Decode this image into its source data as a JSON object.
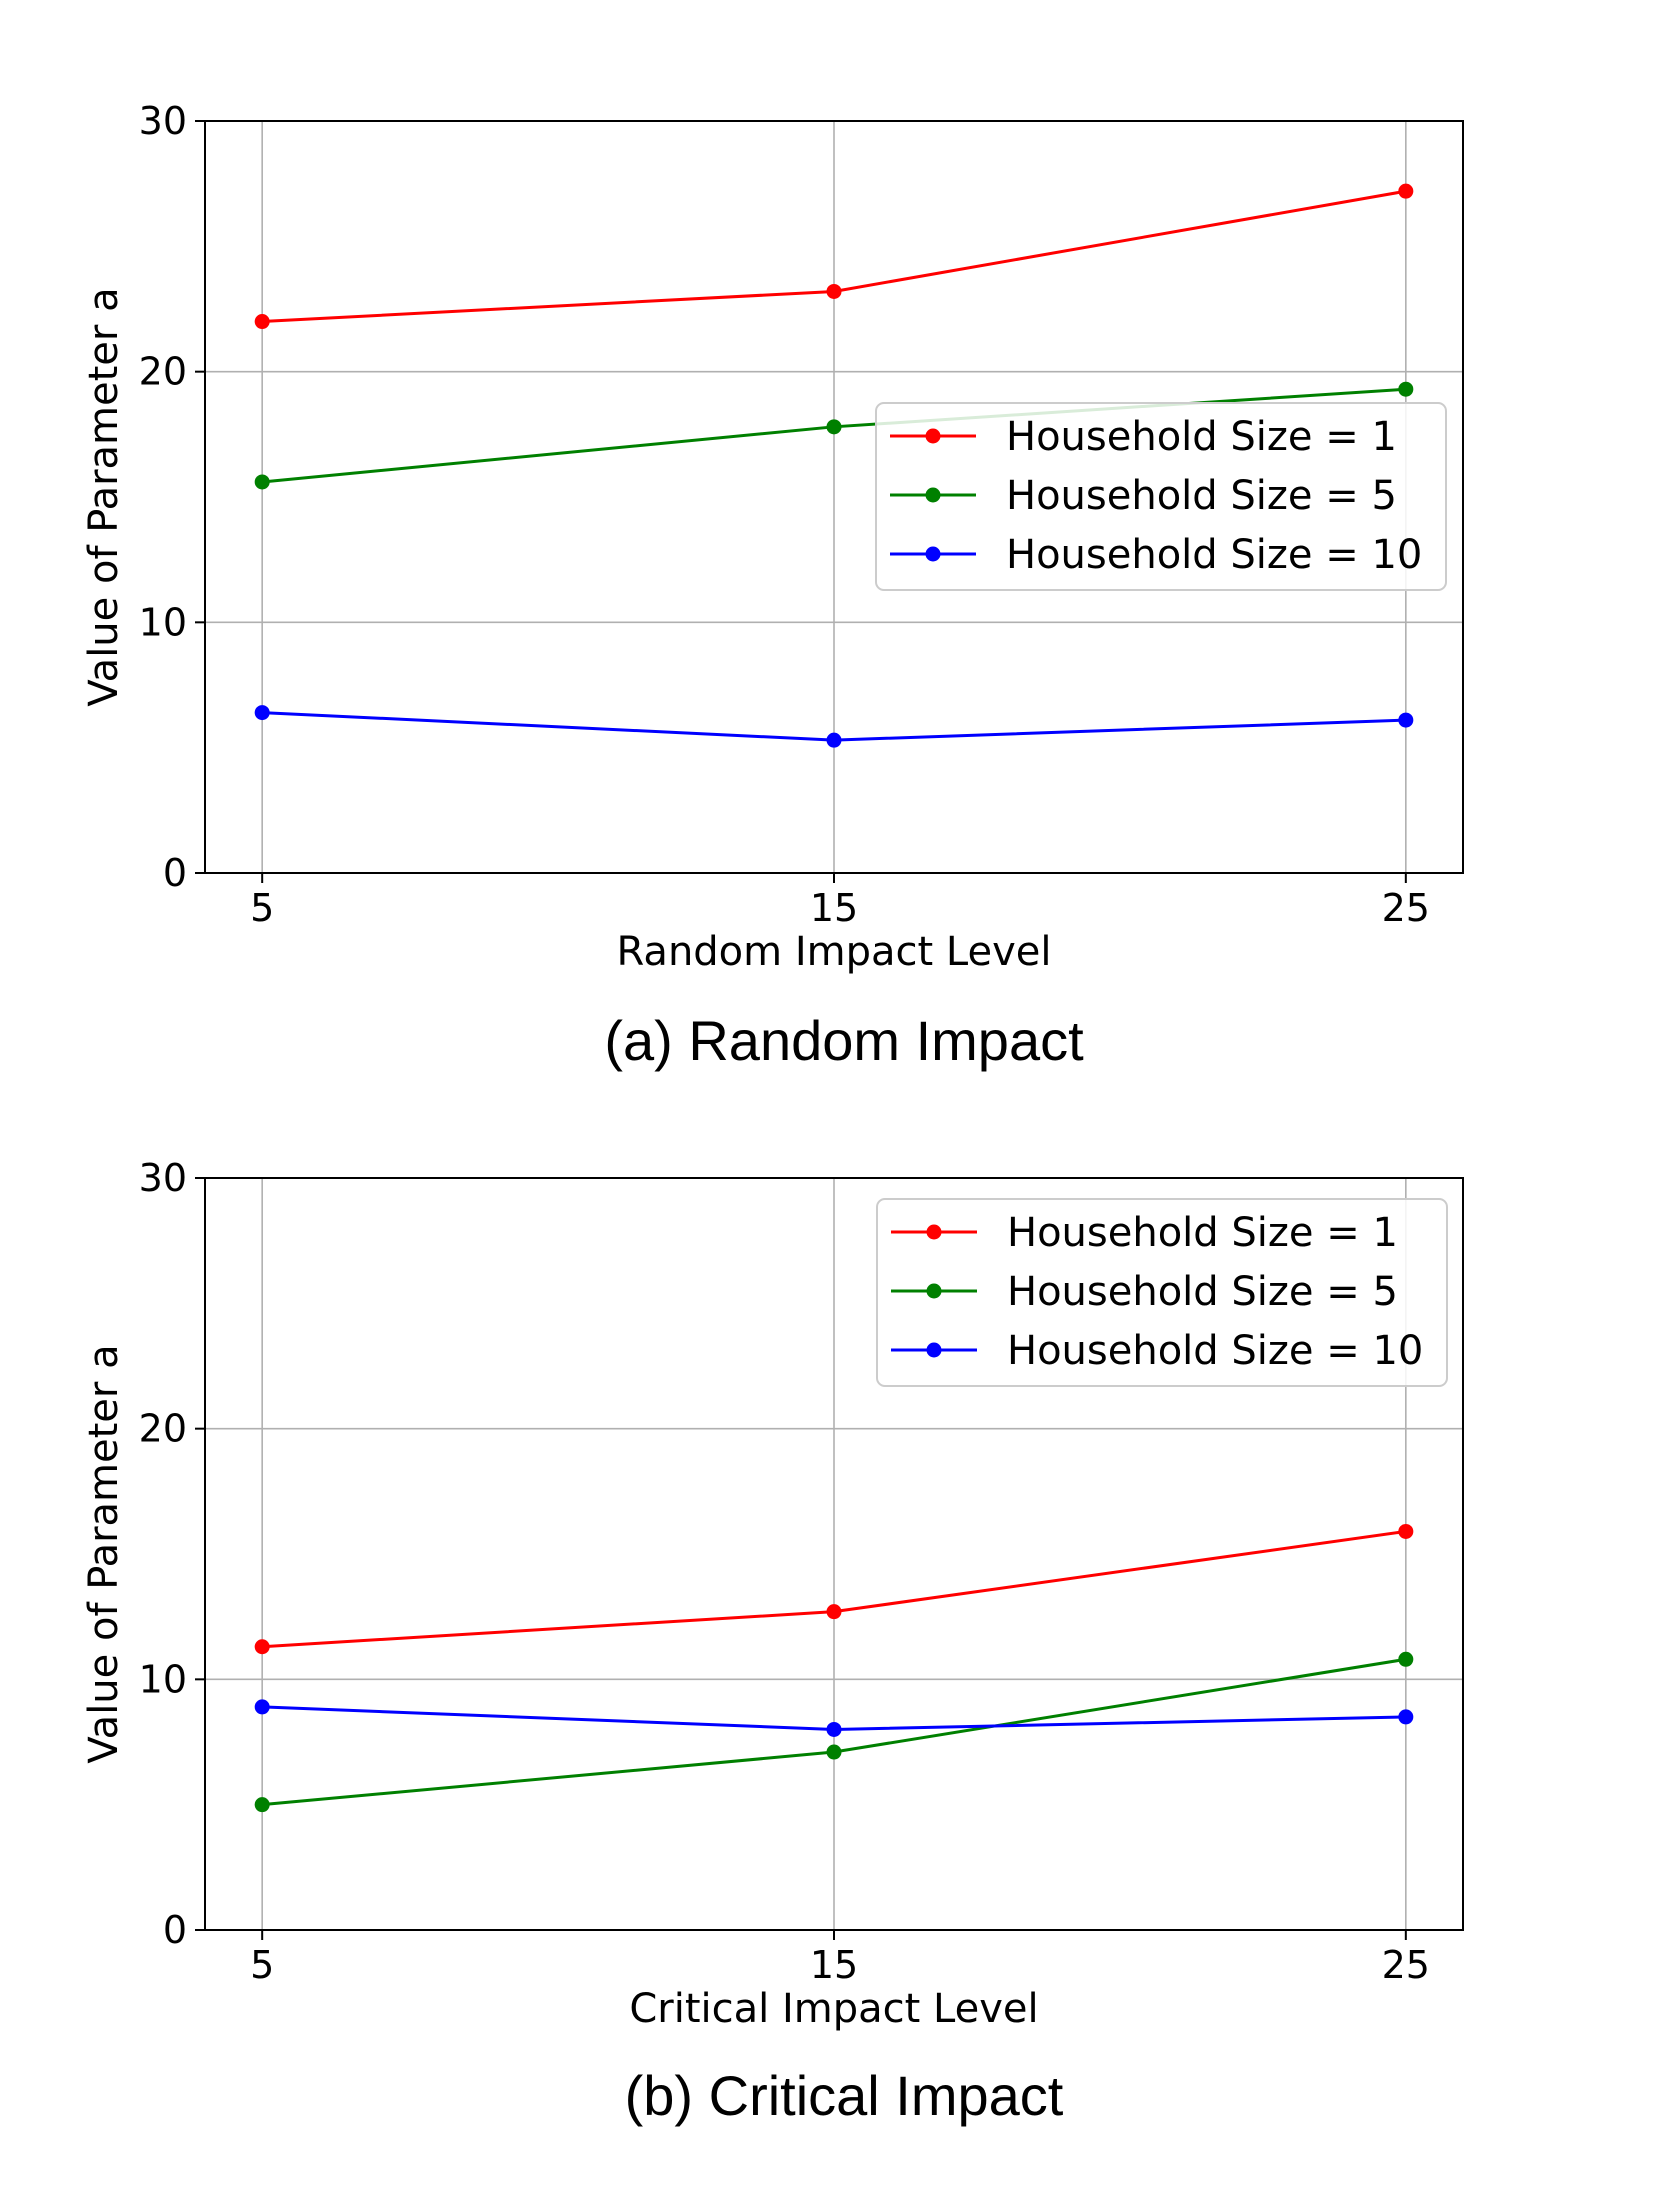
{
  "chart_data": [
    {
      "type": "line",
      "title": "",
      "caption": "(a) Random Impact",
      "xlabel": "Random Impact Level",
      "ylabel": "Value of Parameter a",
      "x": [
        5,
        15,
        25
      ],
      "xticks": [
        "5",
        "15",
        "25"
      ],
      "yticks": [
        "0",
        "10",
        "20",
        "30"
      ],
      "xlim": [
        4,
        26
      ],
      "ylim": [
        0,
        30
      ],
      "grid": true,
      "legend_position": "center-right",
      "series": [
        {
          "name": "Household Size = 1",
          "color": "#ff0000",
          "values": [
            22.0,
            23.2,
            27.2
          ]
        },
        {
          "name": "Household Size = 5",
          "color": "#008000",
          "values": [
            15.6,
            17.8,
            19.3
          ]
        },
        {
          "name": "Household Size = 10",
          "color": "#0000ff",
          "values": [
            6.4,
            5.3,
            6.1
          ]
        }
      ]
    },
    {
      "type": "line",
      "title": "",
      "caption": "(b) Critical Impact",
      "xlabel": "Critical Impact Level",
      "ylabel": "Value of Parameter a",
      "x": [
        5,
        15,
        25
      ],
      "xticks": [
        "5",
        "15",
        "25"
      ],
      "yticks": [
        "0",
        "10",
        "20",
        "30"
      ],
      "xlim": [
        4,
        26
      ],
      "ylim": [
        0,
        30
      ],
      "grid": true,
      "legend_position": "top-right",
      "series": [
        {
          "name": "Household Size = 1",
          "color": "#ff0000",
          "values": [
            11.3,
            12.7,
            15.9
          ]
        },
        {
          "name": "Household Size = 5",
          "color": "#008000",
          "values": [
            5.0,
            7.1,
            10.8
          ]
        },
        {
          "name": "Household Size = 10",
          "color": "#0000ff",
          "values": [
            8.9,
            8.0,
            8.5
          ]
        }
      ]
    }
  ]
}
